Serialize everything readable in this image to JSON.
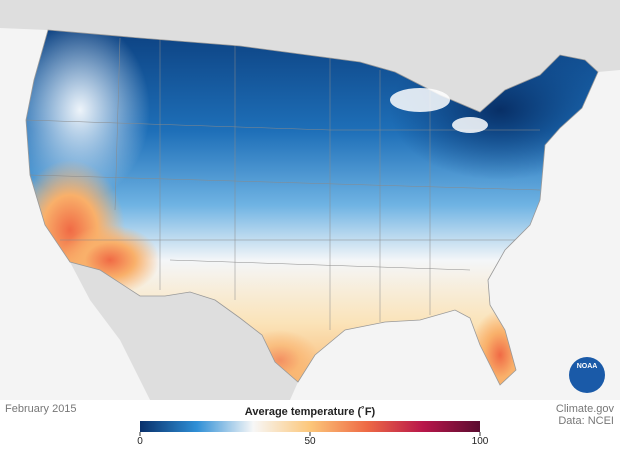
{
  "map": {
    "date": "February 2015",
    "logo": "NOAA"
  },
  "legend": {
    "title": "Average temperature (˚F)",
    "range": [
      0,
      100
    ],
    "ticks": [
      0,
      50,
      100
    ],
    "colors": [
      "#08306b",
      "#2f8fd6",
      "#f7f7f7",
      "#fcc77a",
      "#ee6a45",
      "#b8164a",
      "#5a0c2f"
    ]
  },
  "credit": {
    "site": "Climate.gov",
    "source": "Data: NCEI"
  }
}
